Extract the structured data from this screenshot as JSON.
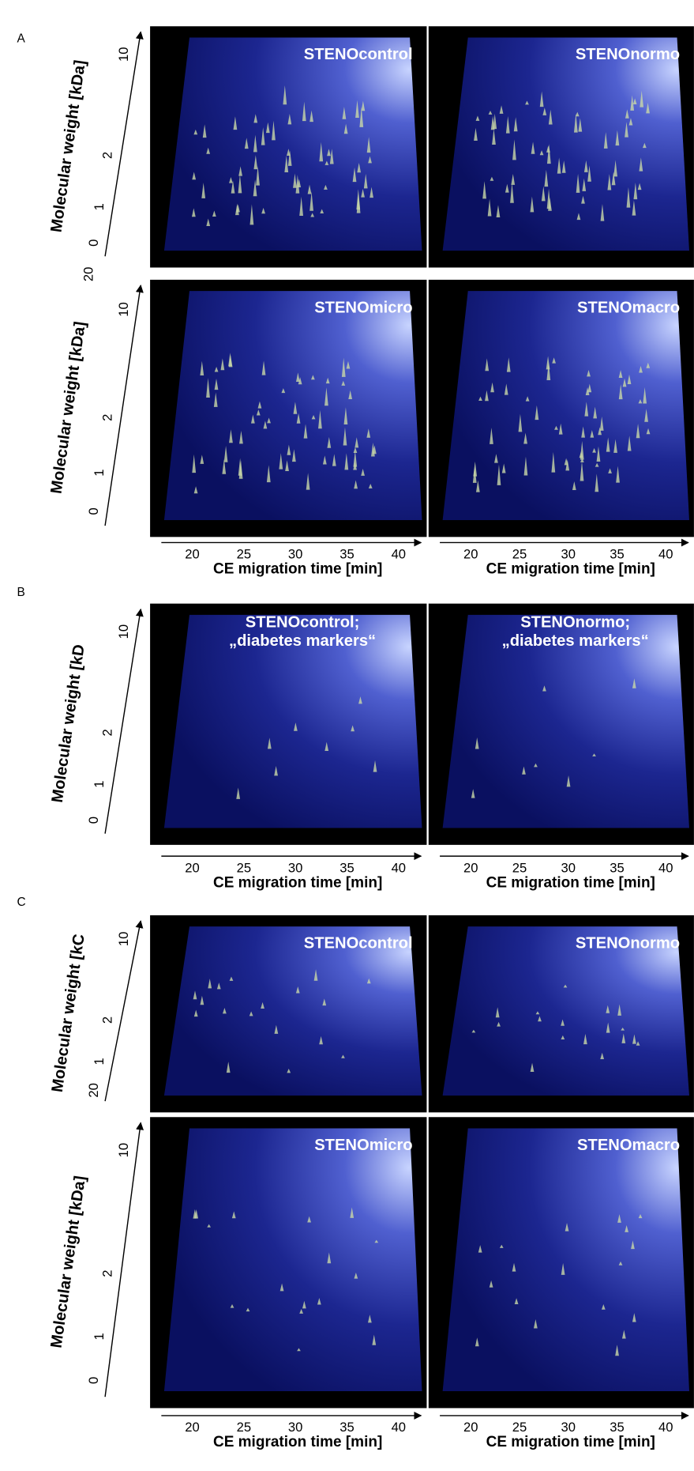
{
  "panels": [
    {
      "label": "A",
      "rows": [
        {
          "y_axis": {
            "label": "Molecular weight [kDa]",
            "ticks": [
              "10",
              "2",
              "1",
              "0",
              "20"
            ]
          },
          "plots": [
            {
              "title": "STENOcontrol"
            },
            {
              "title": "STENOnormo"
            }
          ]
        },
        {
          "y_axis": {
            "label": "Molecular weight [kDa]",
            "ticks": [
              "10",
              "2",
              "1",
              "0"
            ]
          },
          "plots": [
            {
              "title": "STENOmicro"
            },
            {
              "title": "STENOmacro"
            }
          ]
        }
      ],
      "x_axes": [
        {
          "ticks": [
            "20",
            "25",
            "30",
            "35",
            "40"
          ],
          "label": "CE migration time [min]"
        },
        {
          "ticks": [
            "20",
            "25",
            "30",
            "35",
            "40"
          ],
          "label": "CE migration time [min]"
        }
      ]
    },
    {
      "label": "B",
      "rows": [
        {
          "y_axis": {
            "label": "Molecular weight [kD",
            "ticks": [
              "10",
              "2",
              "1",
              "0"
            ]
          },
          "plots": [
            {
              "title": [
                "STENOcontrol;",
                "„diabetes markers“"
              ]
            },
            {
              "title": [
                "STENOnormo;",
                "„diabetes markers“"
              ]
            }
          ]
        }
      ],
      "x_axes": [
        {
          "ticks": [
            "20",
            "25",
            "30",
            "35",
            "40"
          ],
          "label": "CE migration time [min]"
        },
        {
          "ticks": [
            "20",
            "25",
            "30",
            "35",
            "40"
          ],
          "label": "CE migration time [min]"
        }
      ]
    },
    {
      "label": "C",
      "rows": [
        {
          "y_axis": {
            "label": "Molecular weight [kC",
            "ticks": [
              "10",
              "2",
              "1",
              "20"
            ]
          },
          "plots": [
            {
              "title": "STENOcontrol"
            },
            {
              "title": "STENOnormo"
            }
          ]
        },
        {
          "y_axis": {
            "label": "Molecular weight [kDa]",
            "ticks": [
              "10",
              "2",
              "1",
              "0"
            ]
          },
          "plots": [
            {
              "title": "STENOmicro"
            },
            {
              "title": "STENOmacro"
            }
          ]
        }
      ],
      "x_axes": [
        {
          "ticks": [
            "20",
            "25",
            "30",
            "35",
            "40"
          ],
          "label": "CE migration time [min]"
        },
        {
          "ticks": [
            "20",
            "25",
            "30",
            "35",
            "40"
          ],
          "label": "CE migration time [min]"
        }
      ]
    }
  ]
}
